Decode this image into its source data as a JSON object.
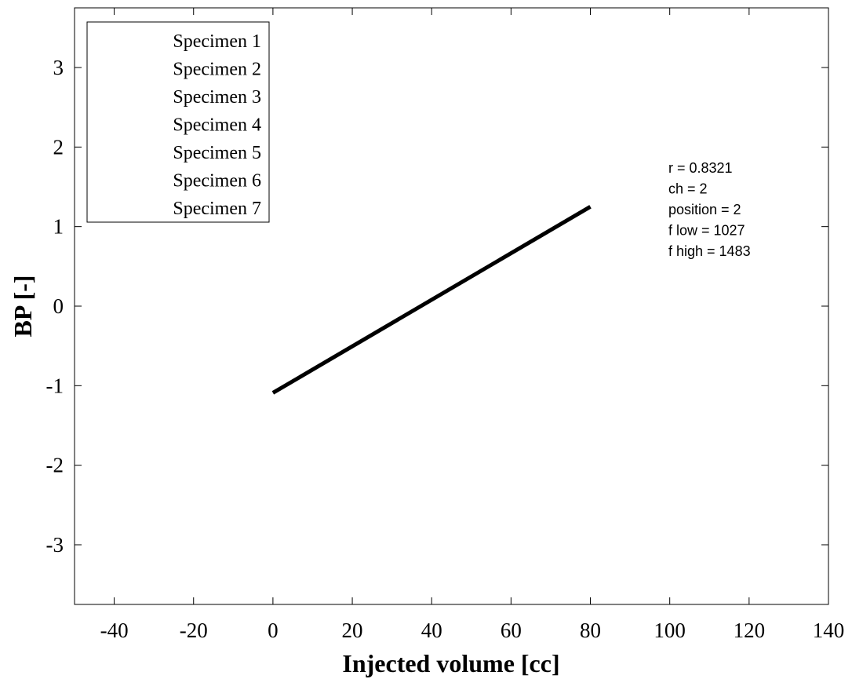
{
  "chart_data": {
    "type": "line",
    "xlabel": "Injected volume [cc]",
    "ylabel": "BP [-]",
    "xlim": [
      -50,
      140
    ],
    "ylim": [
      -3.75,
      3.75
    ],
    "xticks": [
      -40,
      -20,
      0,
      20,
      40,
      60,
      80,
      100,
      120,
      140
    ],
    "yticks": [
      -3,
      -2,
      -1,
      0,
      1,
      2,
      3
    ],
    "grid": false,
    "legend": {
      "placement": "top-left",
      "entries": [
        "Specimen 1",
        "Specimen 2",
        "Specimen 3",
        "Specimen 4",
        "Specimen 5",
        "Specimen 6",
        "Specimen 7"
      ]
    },
    "series": [
      {
        "x": [
          0,
          80
        ],
        "y": [
          -1.09,
          1.25
        ],
        "color": "#000000"
      }
    ],
    "annotations": [
      "r = 0.8321",
      "ch = 2",
      "position = 2",
      "f low = 1027",
      "f high = 1483"
    ]
  }
}
